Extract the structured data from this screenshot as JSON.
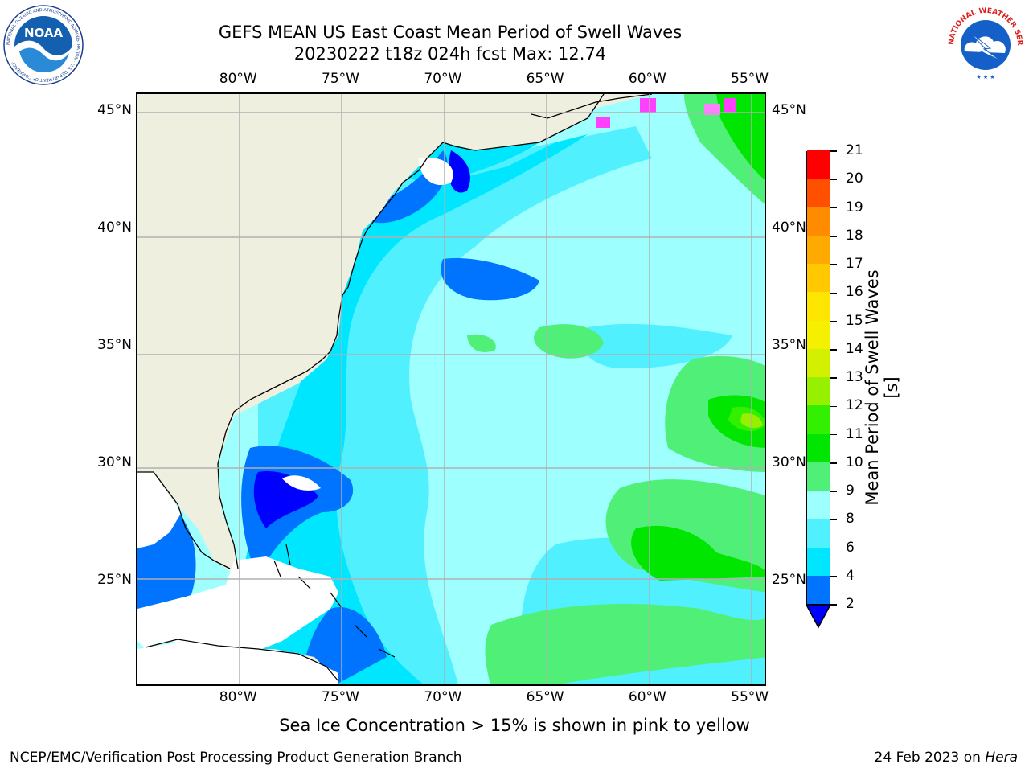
{
  "title": {
    "line1": "GEFS MEAN US East Coast Mean Period of Swell Waves",
    "line2": "20230222 t18z 024h fcst   Max: 12.74"
  },
  "logos": {
    "left": {
      "icon": "noaa-logo-icon",
      "text": "NOAA",
      "ring_text": "NATIONAL OCEANIC AND ATMOSPHERIC ADMINISTRATION · U.S. DEPARTMENT OF COMMERCE"
    },
    "right": {
      "icon": "nws-logo-icon",
      "ring_text": "NATIONAL WEATHER SERVICE"
    }
  },
  "map": {
    "projection": "plate carree",
    "lon_range": [
      -85,
      -54.2
    ],
    "lat_range": [
      20.5,
      45.8
    ],
    "lon_ticks": [
      "80°W",
      "75°W",
      "70°W",
      "65°W",
      "60°W",
      "55°W"
    ],
    "lon_tick_values": [
      -80,
      -75,
      -70,
      -65,
      -60,
      -55
    ],
    "lat_ticks": [
      "45°N",
      "40°N",
      "35°N",
      "30°N",
      "25°N"
    ],
    "lat_tick_values": [
      45,
      40,
      35,
      30,
      25
    ],
    "grid": true,
    "land_color": "#efefdf",
    "no_data_color": "#ffffff",
    "coastline_color": "#000000",
    "grid_color": "#b0b0b0"
  },
  "colorbar": {
    "title": "Mean Period of Swell Waves [s]",
    "levels": [
      2,
      4,
      6,
      8,
      9,
      10,
      11,
      12,
      13,
      14,
      15,
      16,
      17,
      18,
      19,
      20,
      21
    ],
    "tick_labels": [
      "2",
      "4",
      "6",
      "8",
      "9",
      "10",
      "11",
      "12",
      "13",
      "14",
      "15",
      "16",
      "17",
      "18",
      "19",
      "20",
      "21"
    ],
    "colors": [
      "#0073ff",
      "#00e6ff",
      "#50f0ff",
      "#9effff",
      "#50f078",
      "#00e600",
      "#32f000",
      "#96f000",
      "#d2f000",
      "#f5f000",
      "#ffe600",
      "#ffc800",
      "#ffaa00",
      "#ff8c00",
      "#ff5000",
      "#ff0000"
    ],
    "under_color": "#0000ff",
    "extend": "min"
  },
  "sea_ice_colors": [
    "#ff40ff",
    "#ff80ff"
  ],
  "footer": {
    "note": "Sea Ice Concentration > 15% is shown in pink to yellow",
    "credit": "NCEP/EMC/Verification Post Processing Product Generation Branch",
    "date": "24 Feb 2023 on ",
    "machine": "Hera"
  }
}
